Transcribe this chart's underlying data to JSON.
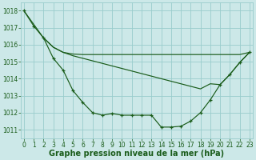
{
  "bg_color": "#cce8e8",
  "grid_color": "#99cccc",
  "line_color": "#1a5c1a",
  "ylim": [
    1010.5,
    1018.5
  ],
  "xlim": [
    -0.3,
    23.3
  ],
  "yticks": [
    1011,
    1012,
    1013,
    1014,
    1015,
    1016,
    1017,
    1018
  ],
  "xticks": [
    0,
    1,
    2,
    3,
    4,
    5,
    6,
    7,
    8,
    9,
    10,
    11,
    12,
    13,
    14,
    15,
    16,
    17,
    18,
    19,
    20,
    21,
    22,
    23
  ],
  "xlabel": "Graphe pression niveau de la mer (hPa)",
  "tick_fontsize": 5.5,
  "label_fontsize": 7.0,
  "series1_x": [
    0,
    1,
    2,
    3,
    4,
    5,
    6,
    7,
    8,
    9,
    10,
    11,
    12,
    13,
    14,
    15,
    16,
    17,
    18,
    19,
    20,
    21,
    22,
    23
  ],
  "series1_y": [
    1018.0,
    1017.1,
    1016.4,
    1015.2,
    1014.5,
    1013.3,
    1012.6,
    1012.0,
    1011.85,
    1011.95,
    1011.85,
    1011.85,
    1011.85,
    1011.85,
    1011.15,
    1011.15,
    1011.2,
    1011.5,
    1012.0,
    1012.75,
    1013.65,
    1014.25,
    1014.95,
    1015.55
  ],
  "series2_x": [
    2,
    3,
    4,
    5,
    6,
    7,
    8,
    9,
    10,
    11,
    12,
    13,
    14,
    15,
    16,
    17,
    18,
    19,
    20,
    21,
    22,
    23
  ],
  "series2_y": [
    1016.4,
    1015.85,
    1015.55,
    1015.45,
    1015.42,
    1015.42,
    1015.42,
    1015.42,
    1015.42,
    1015.42,
    1015.42,
    1015.42,
    1015.42,
    1015.42,
    1015.42,
    1015.42,
    1015.42,
    1015.42,
    1015.42,
    1015.42,
    1015.42,
    1015.55
  ],
  "series3_x": [
    2,
    3,
    4,
    5,
    6,
    7,
    8,
    9,
    10,
    11,
    12,
    13,
    14,
    15,
    16,
    17,
    18,
    19,
    20,
    21,
    22,
    23
  ],
  "series3_y": [
    1016.4,
    1015.85,
    1015.55,
    1015.35,
    1015.2,
    1015.05,
    1014.9,
    1014.75,
    1014.6,
    1014.45,
    1014.3,
    1014.15,
    1014.0,
    1013.85,
    1013.7,
    1013.55,
    1013.4,
    1013.7,
    1013.65,
    1014.25,
    1014.95,
    1015.55
  ]
}
